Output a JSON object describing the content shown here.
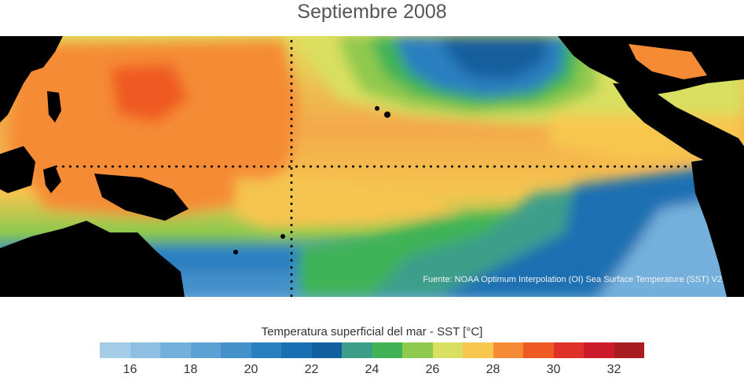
{
  "title": "Septiembre 2008",
  "source": "Fuente: NOAA Optimum Interpolation (OI) Sea Surface Temperature (SST) V2",
  "colorbar": {
    "label": "Temperatura superficial del mar - SST  [°C]",
    "colors": [
      "#a6cde8",
      "#8dbfe2",
      "#74b0dc",
      "#5ba1d4",
      "#4390cb",
      "#2a7fc0",
      "#1a6fb2",
      "#125f9f",
      "#3d9f8a",
      "#41b356",
      "#8fc94e",
      "#d9df60",
      "#f7c74e",
      "#f58b35",
      "#ef5a23",
      "#e0302a",
      "#cb1a28",
      "#a81c22"
    ],
    "tick_values": [
      16,
      18,
      20,
      22,
      24,
      26,
      28,
      30,
      32
    ],
    "range": [
      15,
      33
    ]
  }
}
